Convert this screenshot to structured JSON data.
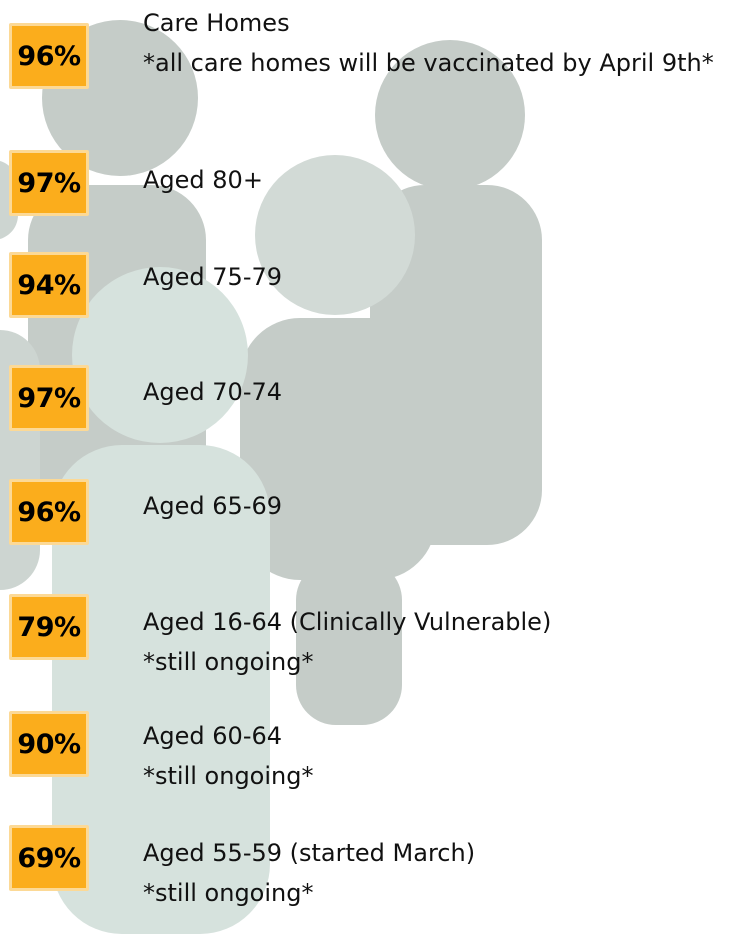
{
  "colors": {
    "badge_fill": "#fbad1c",
    "badge_border": "#fcd996",
    "text": "#111111",
    "figure_gray": "#c5ccc8",
    "figure_mint": "#d6e2dd"
  },
  "rows": [
    {
      "percent": "96%",
      "value": 96,
      "label": "Care Homes",
      "note": "*all care homes will be vaccinated by April 9th*"
    },
    {
      "percent": "97%",
      "value": 97,
      "label": "Aged 80+",
      "note": ""
    },
    {
      "percent": "94%",
      "value": 94,
      "label": "Aged 75-79",
      "note": ""
    },
    {
      "percent": "97%",
      "value": 97,
      "label": "Aged 70-74",
      "note": ""
    },
    {
      "percent": "96%",
      "value": 96,
      "label": "Aged 65-69",
      "note": ""
    },
    {
      "percent": "79%",
      "value": 79,
      "label": "Aged 16-64 (Clinically Vulnerable)",
      "note": "*still ongoing*"
    },
    {
      "percent": "90%",
      "value": 90,
      "label": "Aged 60-64",
      "note": "*still ongoing*"
    },
    {
      "percent": "69%",
      "value": 69,
      "label": "Aged 55-59 (started March)",
      "note": "*still ongoing*"
    }
  ]
}
